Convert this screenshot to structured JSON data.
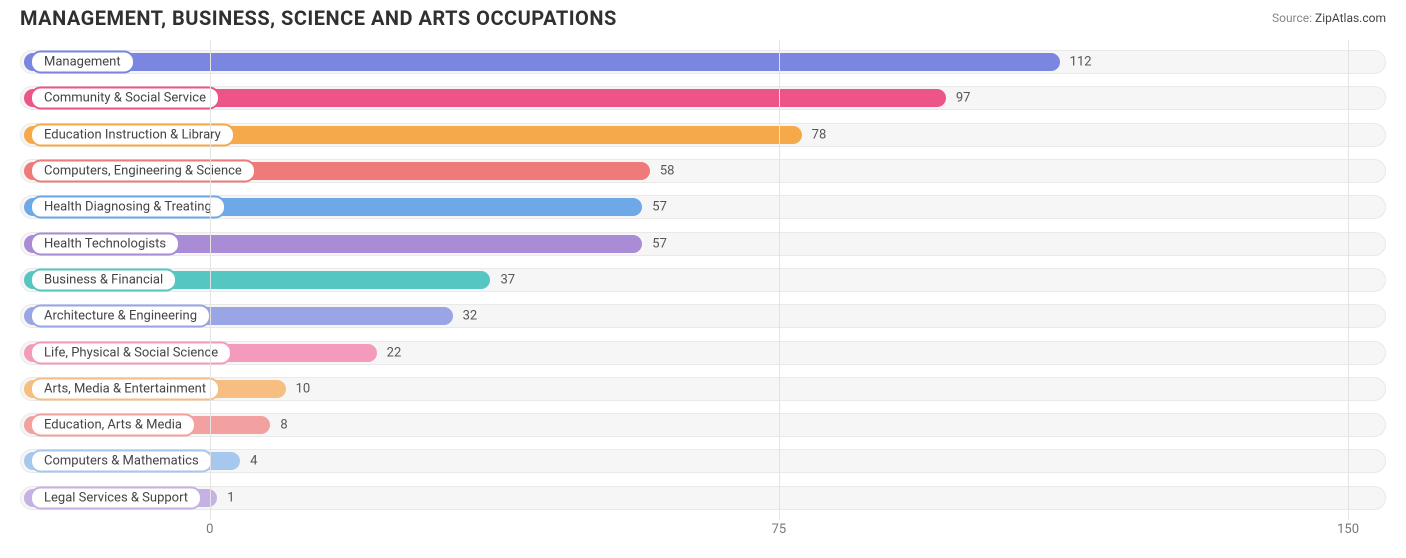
{
  "header": {
    "title": "MANAGEMENT, BUSINESS, SCIENCE AND ARTS OCCUPATIONS",
    "source_label": "Source:",
    "source_value": "ZipAtlas.com"
  },
  "chart": {
    "type": "bar-horizontal",
    "x_axis": {
      "min": -25,
      "max": 155,
      "ticks": [
        0,
        75,
        150
      ],
      "gridline_color": "#e3e3e3"
    },
    "track_bg": "#f6f6f6",
    "track_border": "#e9e9e9",
    "label_fontsize": 13,
    "value_fontsize": 13,
    "series": [
      {
        "label": "Management",
        "value": 112,
        "color": "#7a86e0"
      },
      {
        "label": "Community & Social Service",
        "value": 97,
        "color": "#ed5487"
      },
      {
        "label": "Education Instruction & Library",
        "value": 78,
        "color": "#f6a94b"
      },
      {
        "label": "Computers, Engineering & Science",
        "value": 58,
        "color": "#ee7a7a"
      },
      {
        "label": "Health Diagnosing & Treating",
        "value": 57,
        "color": "#6fa8e6"
      },
      {
        "label": "Health Technologists",
        "value": 57,
        "color": "#a98bd6"
      },
      {
        "label": "Business & Financial",
        "value": 37,
        "color": "#56c6c3"
      },
      {
        "label": "Architecture & Engineering",
        "value": 32,
        "color": "#9aa5e6"
      },
      {
        "label": "Life, Physical & Social Science",
        "value": 22,
        "color": "#f49bbd"
      },
      {
        "label": "Arts, Media & Entertainment",
        "value": 10,
        "color": "#f7be81"
      },
      {
        "label": "Education, Arts & Media",
        "value": 8,
        "color": "#f2a0a0"
      },
      {
        "label": "Computers & Mathematics",
        "value": 4,
        "color": "#a6c7ee"
      },
      {
        "label": "Legal Services & Support",
        "value": 1,
        "color": "#c5b1e3"
      }
    ]
  }
}
